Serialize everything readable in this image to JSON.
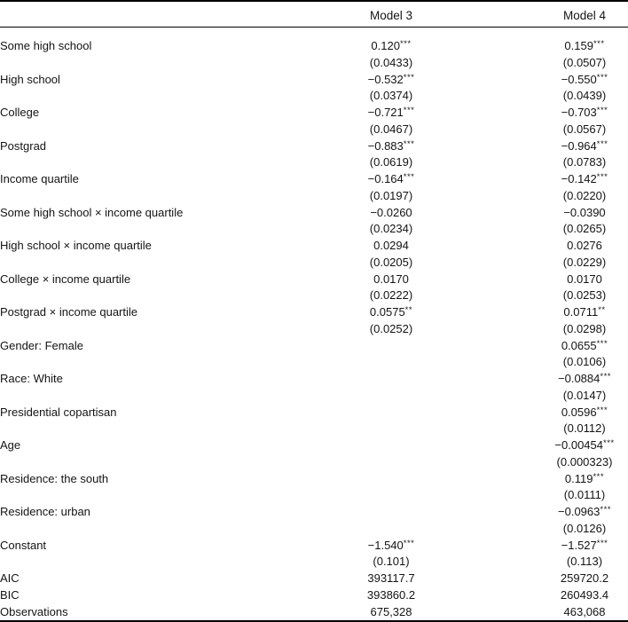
{
  "table": {
    "headers": {
      "model3": "Model 3",
      "model4": "Model 4"
    },
    "rows": [
      {
        "label": "Some high school",
        "m3": {
          "est": "0.120",
          "stars": "***",
          "se": "(0.0433)"
        },
        "m4": {
          "est": "0.159",
          "stars": "***",
          "se": "(0.0507)"
        }
      },
      {
        "label": "High school",
        "m3": {
          "est": "−0.532",
          "stars": "***",
          "se": "(0.0374)"
        },
        "m4": {
          "est": "−0.550",
          "stars": "***",
          "se": "(0.0439)"
        }
      },
      {
        "label": "College",
        "m3": {
          "est": "−0.721",
          "stars": "***",
          "se": "(0.0467)"
        },
        "m4": {
          "est": "−0.703",
          "stars": "***",
          "se": "(0.0567)"
        }
      },
      {
        "label": "Postgrad",
        "m3": {
          "est": "−0.883",
          "stars": "***",
          "se": "(0.0619)"
        },
        "m4": {
          "est": "−0.964",
          "stars": "***",
          "se": "(0.0783)"
        }
      },
      {
        "label": "Income quartile",
        "m3": {
          "est": "−0.164",
          "stars": "***",
          "se": "(0.0197)"
        },
        "m4": {
          "est": "−0.142",
          "stars": "***",
          "se": "(0.0220)"
        }
      },
      {
        "label": "Some high school × income quartile",
        "m3": {
          "est": "−0.0260",
          "stars": "",
          "se": "(0.0234)"
        },
        "m4": {
          "est": "−0.0390",
          "stars": "",
          "se": "(0.0265)"
        }
      },
      {
        "label": "High school × income quartile",
        "m3": {
          "est": "0.0294",
          "stars": "",
          "se": "(0.0205)"
        },
        "m4": {
          "est": "0.0276",
          "stars": "",
          "se": "(0.0229)"
        }
      },
      {
        "label": "College × income quartile",
        "m3": {
          "est": "0.0170",
          "stars": "",
          "se": "(0.0222)"
        },
        "m4": {
          "est": "0.0170",
          "stars": "",
          "se": "(0.0253)"
        }
      },
      {
        "label": "Postgrad × income quartile",
        "m3": {
          "est": "0.0575",
          "stars": "**",
          "se": "(0.0252)"
        },
        "m4": {
          "est": "0.0711",
          "stars": "**",
          "se": "(0.0298)"
        }
      },
      {
        "label": "Gender: Female",
        "m3": {
          "est": "",
          "stars": "",
          "se": ""
        },
        "m4": {
          "est": "0.0655",
          "stars": "***",
          "se": "(0.0106)"
        }
      },
      {
        "label": "Race: White",
        "m3": {
          "est": "",
          "stars": "",
          "se": ""
        },
        "m4": {
          "est": "−0.0884",
          "stars": "***",
          "se": "(0.0147)"
        }
      },
      {
        "label": "Presidential copartisan",
        "m3": {
          "est": "",
          "stars": "",
          "se": ""
        },
        "m4": {
          "est": "0.0596",
          "stars": "***",
          "se": "(0.0112)"
        }
      },
      {
        "label": "Age",
        "m3": {
          "est": "",
          "stars": "",
          "se": ""
        },
        "m4": {
          "est": "−0.00454",
          "stars": "***",
          "se": "(0.000323)"
        }
      },
      {
        "label": "Residence: the south",
        "m3": {
          "est": "",
          "stars": "",
          "se": ""
        },
        "m4": {
          "est": "0.119",
          "stars": "***",
          "se": "(0.0111)"
        }
      },
      {
        "label": "Residence: urban",
        "m3": {
          "est": "",
          "stars": "",
          "se": ""
        },
        "m4": {
          "est": "−0.0963",
          "stars": "***",
          "se": "(0.0126)"
        }
      },
      {
        "label": "Constant",
        "m3": {
          "est": "−1.540",
          "stars": "***",
          "se": "(0.101)"
        },
        "m4": {
          "est": "−1.527",
          "stars": "***",
          "se": "(0.113)"
        }
      }
    ],
    "stats": [
      {
        "label": "AIC",
        "m3": "393117.7",
        "m4": "259720.2"
      },
      {
        "label": "BIC",
        "m3": "393860.2",
        "m4": "260493.4"
      },
      {
        "label": "Observations",
        "m3": "675,328",
        "m4": "463,068"
      }
    ]
  }
}
